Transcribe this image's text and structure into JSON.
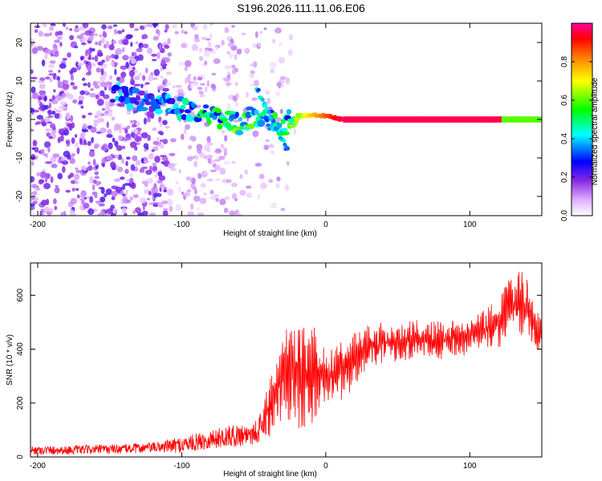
{
  "page_title": "S196.2026.111.11.06.E06",
  "chart_data": [
    {
      "type": "heatmap",
      "title": "S196.2026.111.11.06.E06",
      "xlabel": "Height of straight line (km)",
      "ylabel": "Frequency (Hz)",
      "xlim": [
        -205,
        150
      ],
      "ylim": [
        -25,
        25
      ],
      "xticks": [
        -200,
        -100,
        0,
        100
      ],
      "yticks": [
        -20,
        -10,
        0,
        10,
        20
      ],
      "ridge": {
        "x": [
          -145,
          -130,
          -115,
          -100,
          -90,
          -80,
          -70,
          -60,
          -50,
          -40,
          -30,
          -25,
          -20,
          -10,
          0,
          10,
          20,
          60,
          100,
          140,
          150
        ],
        "freq": [
          7,
          5,
          4,
          3,
          2,
          1,
          0,
          -1,
          1,
          0,
          -2,
          0,
          1,
          1,
          1,
          0,
          0,
          0,
          0,
          0,
          0
        ],
        "amplitude": [
          0.35,
          0.35,
          0.35,
          0.4,
          0.45,
          0.45,
          0.5,
          0.55,
          0.5,
          0.5,
          0.45,
          0.5,
          0.6,
          0.75,
          0.85,
          0.95,
          0.98,
          0.98,
          0.98,
          0.7,
          0.55
        ]
      },
      "colorbar": {
        "label": "Normalized spectral amplitude",
        "range": [
          0,
          1
        ],
        "ticks": [
          "0.0",
          "0.2",
          "0.4",
          "0.6",
          "0.8"
        ]
      }
    },
    {
      "type": "line",
      "xlabel": "Height of straight line (km)",
      "ylabel": "SNR (10 * v/v)",
      "xlim": [
        -205,
        150
      ],
      "ylim": [
        0,
        720
      ],
      "xticks": [
        -200,
        -100,
        0,
        100
      ],
      "yticks": [
        0,
        200,
        400,
        600
      ],
      "color": "#ff0000",
      "series": [
        {
          "name": "SNR",
          "x": [
            -205,
            -180,
            -160,
            -140,
            -120,
            -100,
            -90,
            -80,
            -70,
            -60,
            -50,
            -45,
            -40,
            -35,
            -30,
            -25,
            -20,
            -15,
            -10,
            -5,
            0,
            10,
            20,
            30,
            40,
            60,
            80,
            100,
            110,
            120,
            128,
            135,
            140,
            145,
            150
          ],
          "y": [
            25,
            25,
            28,
            30,
            35,
            45,
            55,
            65,
            75,
            80,
            90,
            110,
            180,
            260,
            300,
            300,
            330,
            350,
            330,
            300,
            300,
            310,
            360,
            410,
            430,
            450,
            460,
            480,
            500,
            540,
            620,
            640,
            580,
            500,
            450
          ],
          "envelope_min": [
            5,
            5,
            8,
            10,
            12,
            15,
            18,
            20,
            22,
            25,
            28,
            30,
            50,
            80,
            100,
            80,
            70,
            40,
            40,
            150,
            200,
            180,
            250,
            330,
            340,
            350,
            360,
            380,
            380,
            400,
            440,
            450,
            430,
            400,
            370
          ],
          "envelope_max": [
            45,
            45,
            50,
            55,
            60,
            90,
            100,
            110,
            120,
            130,
            140,
            170,
            300,
            420,
            480,
            520,
            540,
            550,
            520,
            440,
            420,
            440,
            470,
            490,
            500,
            510,
            520,
            530,
            560,
            600,
            700,
            710,
            680,
            560,
            520
          ]
        }
      ]
    }
  ]
}
